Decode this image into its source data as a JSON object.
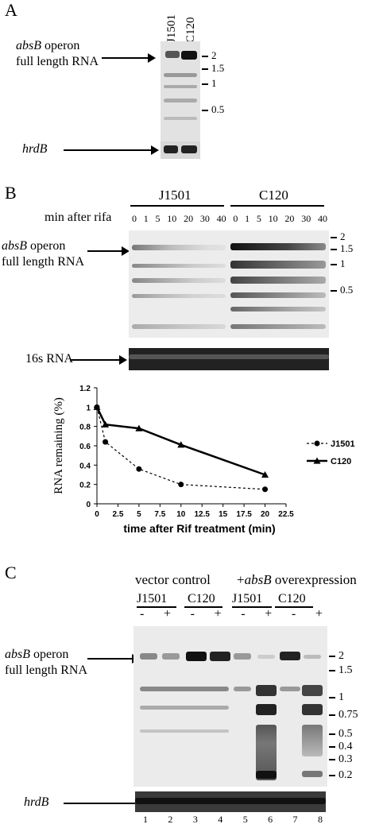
{
  "panelA": {
    "letter": "A",
    "lanes": [
      "J1501",
      "C120"
    ],
    "operon_label_1": "absB",
    "operon_label_2": " operon",
    "operon_label_3": "full length  RNA",
    "markers": [
      "2",
      "1.5",
      "1",
      "0.5"
    ],
    "control_label": "hrdB"
  },
  "panelB": {
    "letter": "B",
    "strain1": "J1501",
    "strain2": "C120",
    "time_label": "min after rifa",
    "times": [
      "0",
      "1",
      "5",
      "10",
      "20",
      "30",
      "40",
      "0",
      "1",
      "5",
      "10",
      "20",
      "30",
      "40"
    ],
    "operon_label_1": "absB",
    "operon_label_2": " operon",
    "operon_label_3": "full length RNA",
    "markers": [
      "2",
      "1.5",
      "1",
      "0.5"
    ],
    "control_label": "16s RNA"
  },
  "chart_data": {
    "type": "line",
    "ylabel": "RNA remaining (%)",
    "xlabel": "time after Rif treatment (min)",
    "xlim": [
      0,
      22.5
    ],
    "ylim": [
      0,
      1.2
    ],
    "xticks": [
      "0",
      "2.5",
      "5",
      "7.5",
      "10",
      "12.5",
      "15",
      "17.5",
      "20",
      "22.5"
    ],
    "yticks": [
      "0",
      "0.2",
      "0.4",
      "0.6",
      "0.8",
      "1",
      "1.2"
    ],
    "series": [
      {
        "name": "J1501",
        "style": "dotted",
        "marker": "circle",
        "x": [
          0,
          1,
          5,
          10,
          20
        ],
        "y": [
          1.0,
          0.64,
          0.36,
          0.2,
          0.15
        ]
      },
      {
        "name": "C120",
        "style": "solid",
        "marker": "triangle",
        "x": [
          0,
          1,
          5,
          10,
          20
        ],
        "y": [
          1.0,
          0.82,
          0.78,
          0.61,
          0.3
        ]
      }
    ]
  },
  "panelC": {
    "letter": "C",
    "group1": "vector control",
    "group2_a": "+",
    "group2_b": "absB",
    "group2_c": " overexpression",
    "strains": [
      "J1501",
      "C120",
      "J1501",
      "C120"
    ],
    "signs": [
      "-",
      "+",
      "-",
      "+",
      "-",
      "+",
      "-",
      "+"
    ],
    "operon_label_1": "absB",
    "operon_label_2": " operon",
    "operon_label_3": "full length RNA",
    "markers": [
      "2",
      "1.5",
      "1",
      "0.75",
      "0.5",
      "0.4",
      "0.3",
      "0.2"
    ],
    "control_label": "hrdB",
    "lane_numbers": [
      "1",
      "2",
      "3",
      "4",
      "5",
      "6",
      "7",
      "8"
    ]
  }
}
